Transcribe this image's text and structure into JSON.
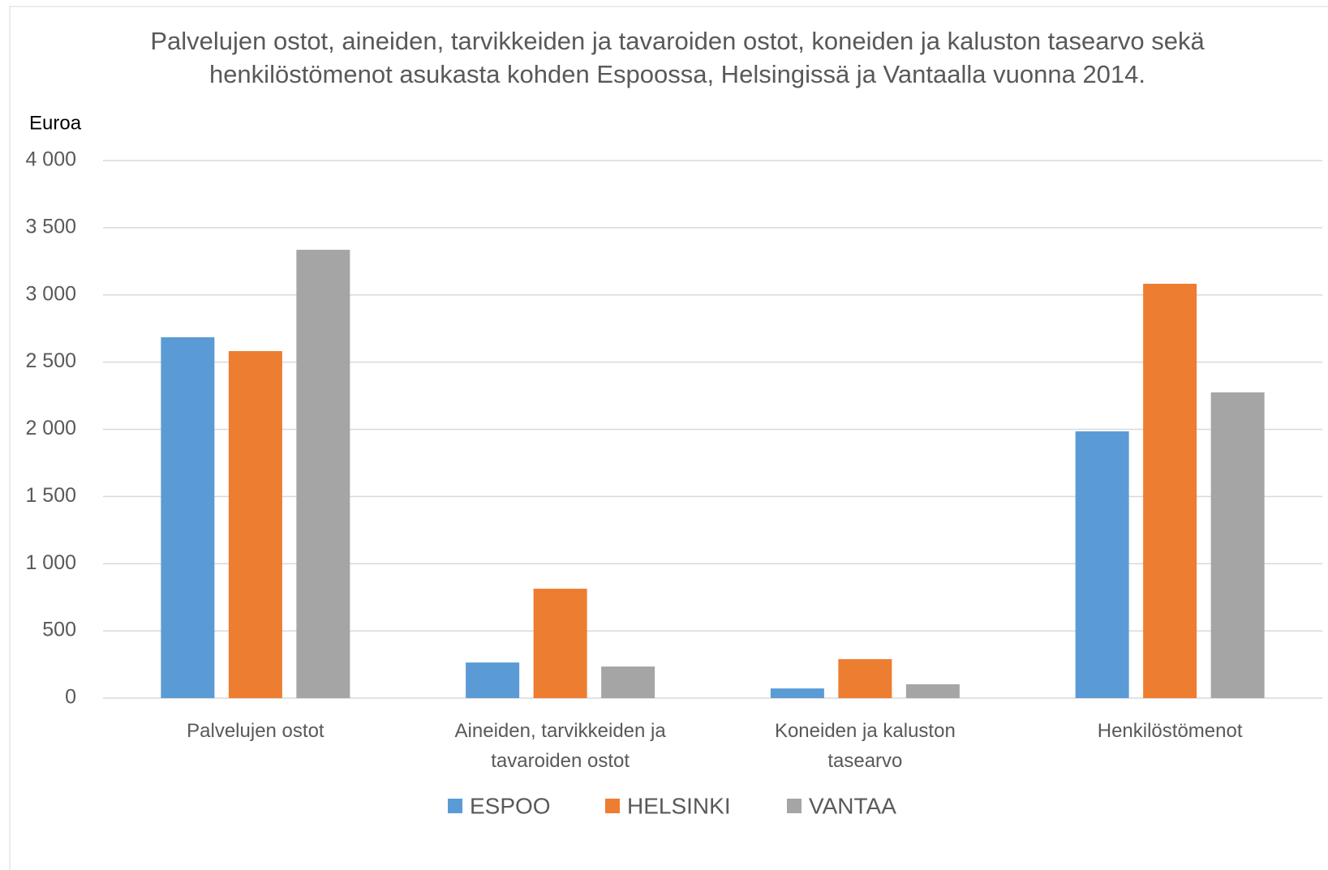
{
  "chart_data": {
    "type": "bar",
    "title": "Palvelujen ostot, aineiden, tarvikkeiden ja tavaroiden ostot, koneiden ja kaluston tasearvo sekä henkilöstömenot asukasta kohden Espoossa, Helsingissä ja Vantaalla vuonna 2014.",
    "y_label": "Euroa",
    "categories": [
      "Palvelujen ostot",
      "Aineiden, tarvikkeiden ja tavaroiden ostot",
      "Koneiden ja kaluston tasearvo",
      "Henkilöstömenot"
    ],
    "series": [
      {
        "name": "ESPOO",
        "color": "#5b9bd5",
        "values": [
          2685,
          265,
          72,
          1985
        ]
      },
      {
        "name": "HELSINKI",
        "color": "#ed7d31",
        "values": [
          2582,
          814,
          290,
          3083
        ]
      },
      {
        "name": "VANTAA",
        "color": "#a5a5a5",
        "values": [
          3336,
          235,
          103,
          2275
        ]
      }
    ],
    "ylim": [
      0,
      4000
    ],
    "yticks": [
      0,
      500,
      {
        "value": 1000,
        "label": "1 000"
      },
      {
        "value": 1500,
        "label": "1 500"
      },
      {
        "value": 2000,
        "label": "2 000"
      },
      {
        "value": 2500,
        "label": "2 500"
      },
      {
        "value": 3000,
        "label": "3 000"
      },
      {
        "value": 3500,
        "label": "3 500"
      },
      {
        "value": 4000,
        "label": "4 000"
      }
    ],
    "grid": true,
    "legend": "bottom"
  }
}
